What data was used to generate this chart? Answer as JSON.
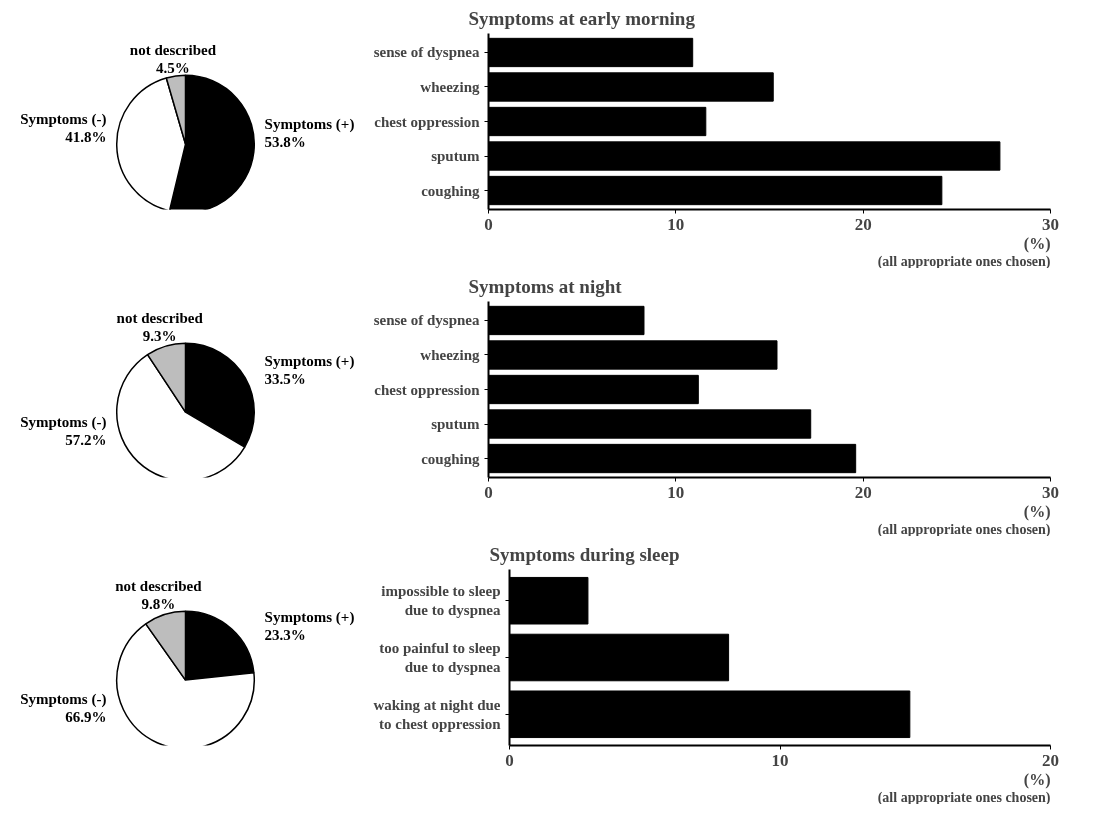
{
  "chart_data": [
    {
      "type": "pie",
      "categories": [
        "Symptoms (+)",
        "Symptoms (-)",
        "not described"
      ],
      "values": [
        53.8,
        41.8,
        4.5
      ],
      "colors": [
        "#000000",
        "#ffffff",
        "#bdbdbd"
      ],
      "value_labels": [
        "53.8%",
        "41.8%",
        "4.5%"
      ]
    },
    {
      "type": "bar",
      "orientation": "horizontal",
      "title": "Symptoms at early morning",
      "categories": [
        "sense of dyspnea",
        "wheezing",
        "chest oppression",
        "sputum",
        "coughing"
      ],
      "values": [
        10.9,
        15.2,
        11.6,
        27.3,
        24.2
      ],
      "color": "#000000",
      "xlim": [
        0,
        30
      ],
      "xticks": [
        0,
        10,
        20,
        30
      ],
      "xlabel": "(%)",
      "annotations": [
        "(all appropriate ones chosen)"
      ]
    },
    {
      "type": "pie",
      "categories": [
        "Symptoms (+)",
        "Symptoms (-)",
        "not described"
      ],
      "values": [
        33.5,
        57.2,
        9.3
      ],
      "colors": [
        "#000000",
        "#ffffff",
        "#bdbdbd"
      ],
      "value_labels": [
        "33.5%",
        "57.2%",
        "9.3%"
      ]
    },
    {
      "type": "bar",
      "orientation": "horizontal",
      "title": "Symptoms at night",
      "categories": [
        "sense of dyspnea",
        "wheezing",
        "chest oppression",
        "sputum",
        "coughing"
      ],
      "values": [
        8.3,
        15.4,
        11.2,
        17.2,
        19.6
      ],
      "color": "#000000",
      "xlim": [
        0,
        30
      ],
      "xticks": [
        0,
        10,
        20,
        30
      ],
      "xlabel": "(%)",
      "annotations": [
        "(all appropriate ones chosen)"
      ]
    },
    {
      "type": "pie",
      "categories": [
        "Symptoms (+)",
        "Symptoms (-)",
        "not described"
      ],
      "values": [
        23.3,
        66.9,
        9.8
      ],
      "colors": [
        "#000000",
        "#ffffff",
        "#bdbdbd"
      ],
      "value_labels": [
        "23.3%",
        "66.9%",
        "9.8%"
      ]
    },
    {
      "type": "bar",
      "orientation": "horizontal",
      "title": "Symptoms during sleep",
      "categories": [
        "impossible to sleep due to dyspnea",
        "too painful to sleep due to dyspnea",
        "waking at night due to chest oppression"
      ],
      "values": [
        2.9,
        8.1,
        14.8
      ],
      "color": "#000000",
      "xlim": [
        0,
        20
      ],
      "xticks": [
        0,
        10,
        20
      ],
      "xlabel": "(%)",
      "annotations": [
        "(all appropriate ones chosen)"
      ]
    }
  ]
}
